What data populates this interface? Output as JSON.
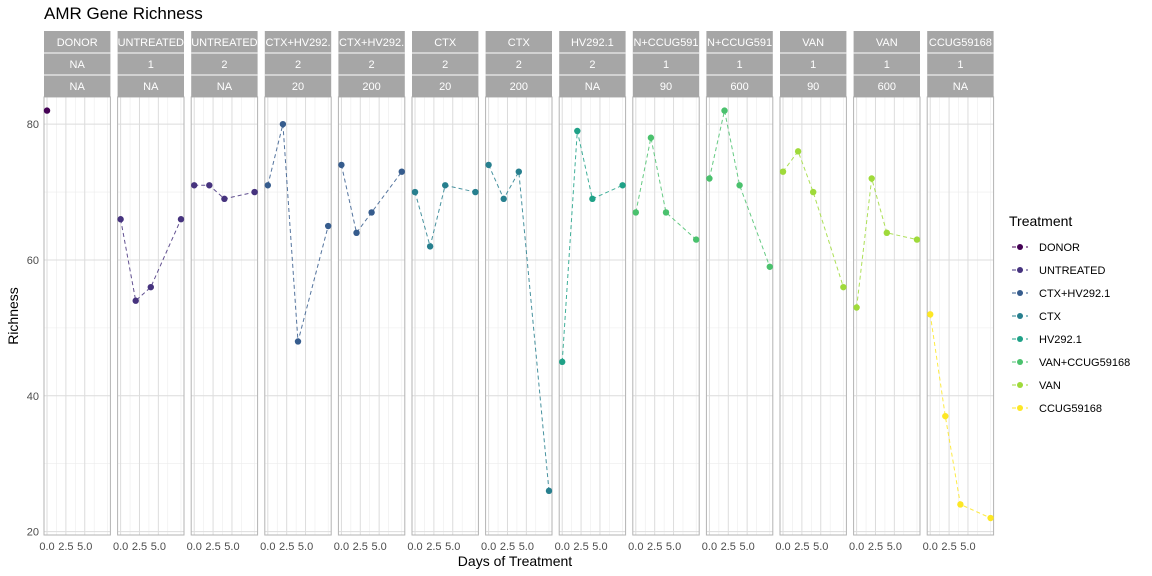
{
  "chart_data": {
    "type": "line",
    "title": "AMR Gene Richness",
    "xlabel": "Days of Treatment",
    "ylabel": "Richness",
    "ylim": [
      19.5,
      84
    ],
    "xlim": [
      -0.4,
      8.4
    ],
    "yticks": [
      20,
      40,
      60,
      80
    ],
    "xtick_labels": [
      "0.0",
      "2.5",
      "5.0"
    ],
    "xtick_values": [
      0,
      2.5,
      5
    ],
    "legend_title": "Treatment",
    "legend_position": "right",
    "grid": true,
    "panels": [
      {
        "treatment": "DONOR",
        "strip": [
          "DONOR",
          "NA",
          "NA"
        ],
        "x": [
          0
        ],
        "y": [
          82
        ]
      },
      {
        "treatment": "UNTREATED",
        "strip": [
          "UNTREATED",
          "1",
          "NA"
        ],
        "x": [
          0,
          2,
          4,
          8
        ],
        "y": [
          66,
          54,
          56,
          66
        ]
      },
      {
        "treatment": "UNTREATED",
        "strip": [
          "UNTREATED",
          "2",
          "NA"
        ],
        "x": [
          0,
          2,
          4,
          8
        ],
        "y": [
          71,
          71,
          69,
          70
        ]
      },
      {
        "treatment": "CTX+HV292.1",
        "strip": [
          "CTX+HV292.",
          "2",
          "20"
        ],
        "x": [
          0,
          2,
          4,
          8
        ],
        "y": [
          71,
          80,
          48,
          65
        ]
      },
      {
        "treatment": "CTX+HV292.1",
        "strip": [
          "CTX+HV292.",
          "2",
          "200"
        ],
        "x": [
          0,
          2,
          4,
          8
        ],
        "y": [
          74,
          64,
          67,
          73
        ]
      },
      {
        "treatment": "CTX",
        "strip": [
          "CTX",
          "2",
          "20"
        ],
        "x": [
          0,
          2,
          4,
          8
        ],
        "y": [
          70,
          62,
          71,
          70
        ]
      },
      {
        "treatment": "CTX",
        "strip": [
          "CTX",
          "2",
          "200"
        ],
        "x": [
          0,
          2,
          4,
          8
        ],
        "y": [
          74,
          69,
          73,
          26
        ]
      },
      {
        "treatment": "HV292.1",
        "strip": [
          "HV292.1",
          "2",
          "NA"
        ],
        "x": [
          0,
          2,
          4,
          8
        ],
        "y": [
          45,
          79,
          69,
          71
        ]
      },
      {
        "treatment": "VAN+CCUG59168",
        "strip": [
          "N+CCUG591",
          "1",
          "90"
        ],
        "x": [
          0,
          2,
          4,
          8
        ],
        "y": [
          67,
          78,
          67,
          63
        ]
      },
      {
        "treatment": "VAN+CCUG59168",
        "strip": [
          "N+CCUG591",
          "1",
          "600"
        ],
        "x": [
          0,
          2,
          4,
          8
        ],
        "y": [
          72,
          82,
          71,
          59
        ]
      },
      {
        "treatment": "VAN",
        "strip": [
          "VAN",
          "1",
          "90"
        ],
        "x": [
          0,
          2,
          4,
          8
        ],
        "y": [
          73,
          76,
          70,
          56
        ]
      },
      {
        "treatment": "VAN",
        "strip": [
          "VAN",
          "1",
          "600"
        ],
        "x": [
          0,
          2,
          4,
          8
        ],
        "y": [
          53,
          72,
          64,
          63
        ]
      },
      {
        "treatment": "CCUG59168",
        "strip": [
          "CCUG59168",
          "1",
          "NA"
        ],
        "x": [
          0,
          2,
          4,
          8
        ],
        "y": [
          52,
          37,
          24,
          22
        ]
      }
    ],
    "series": [
      {
        "name": "DONOR",
        "color": "#440154"
      },
      {
        "name": "UNTREATED",
        "color": "#46337E"
      },
      {
        "name": "CTX+HV292.1",
        "color": "#365C8D"
      },
      {
        "name": "CTX",
        "color": "#277F8E"
      },
      {
        "name": "HV292.1",
        "color": "#1FA187"
      },
      {
        "name": "VAN+CCUG59168",
        "color": "#4AC16D"
      },
      {
        "name": "VAN",
        "color": "#9FDA3A"
      },
      {
        "name": "CCUG59168",
        "color": "#FDE725"
      }
    ]
  }
}
